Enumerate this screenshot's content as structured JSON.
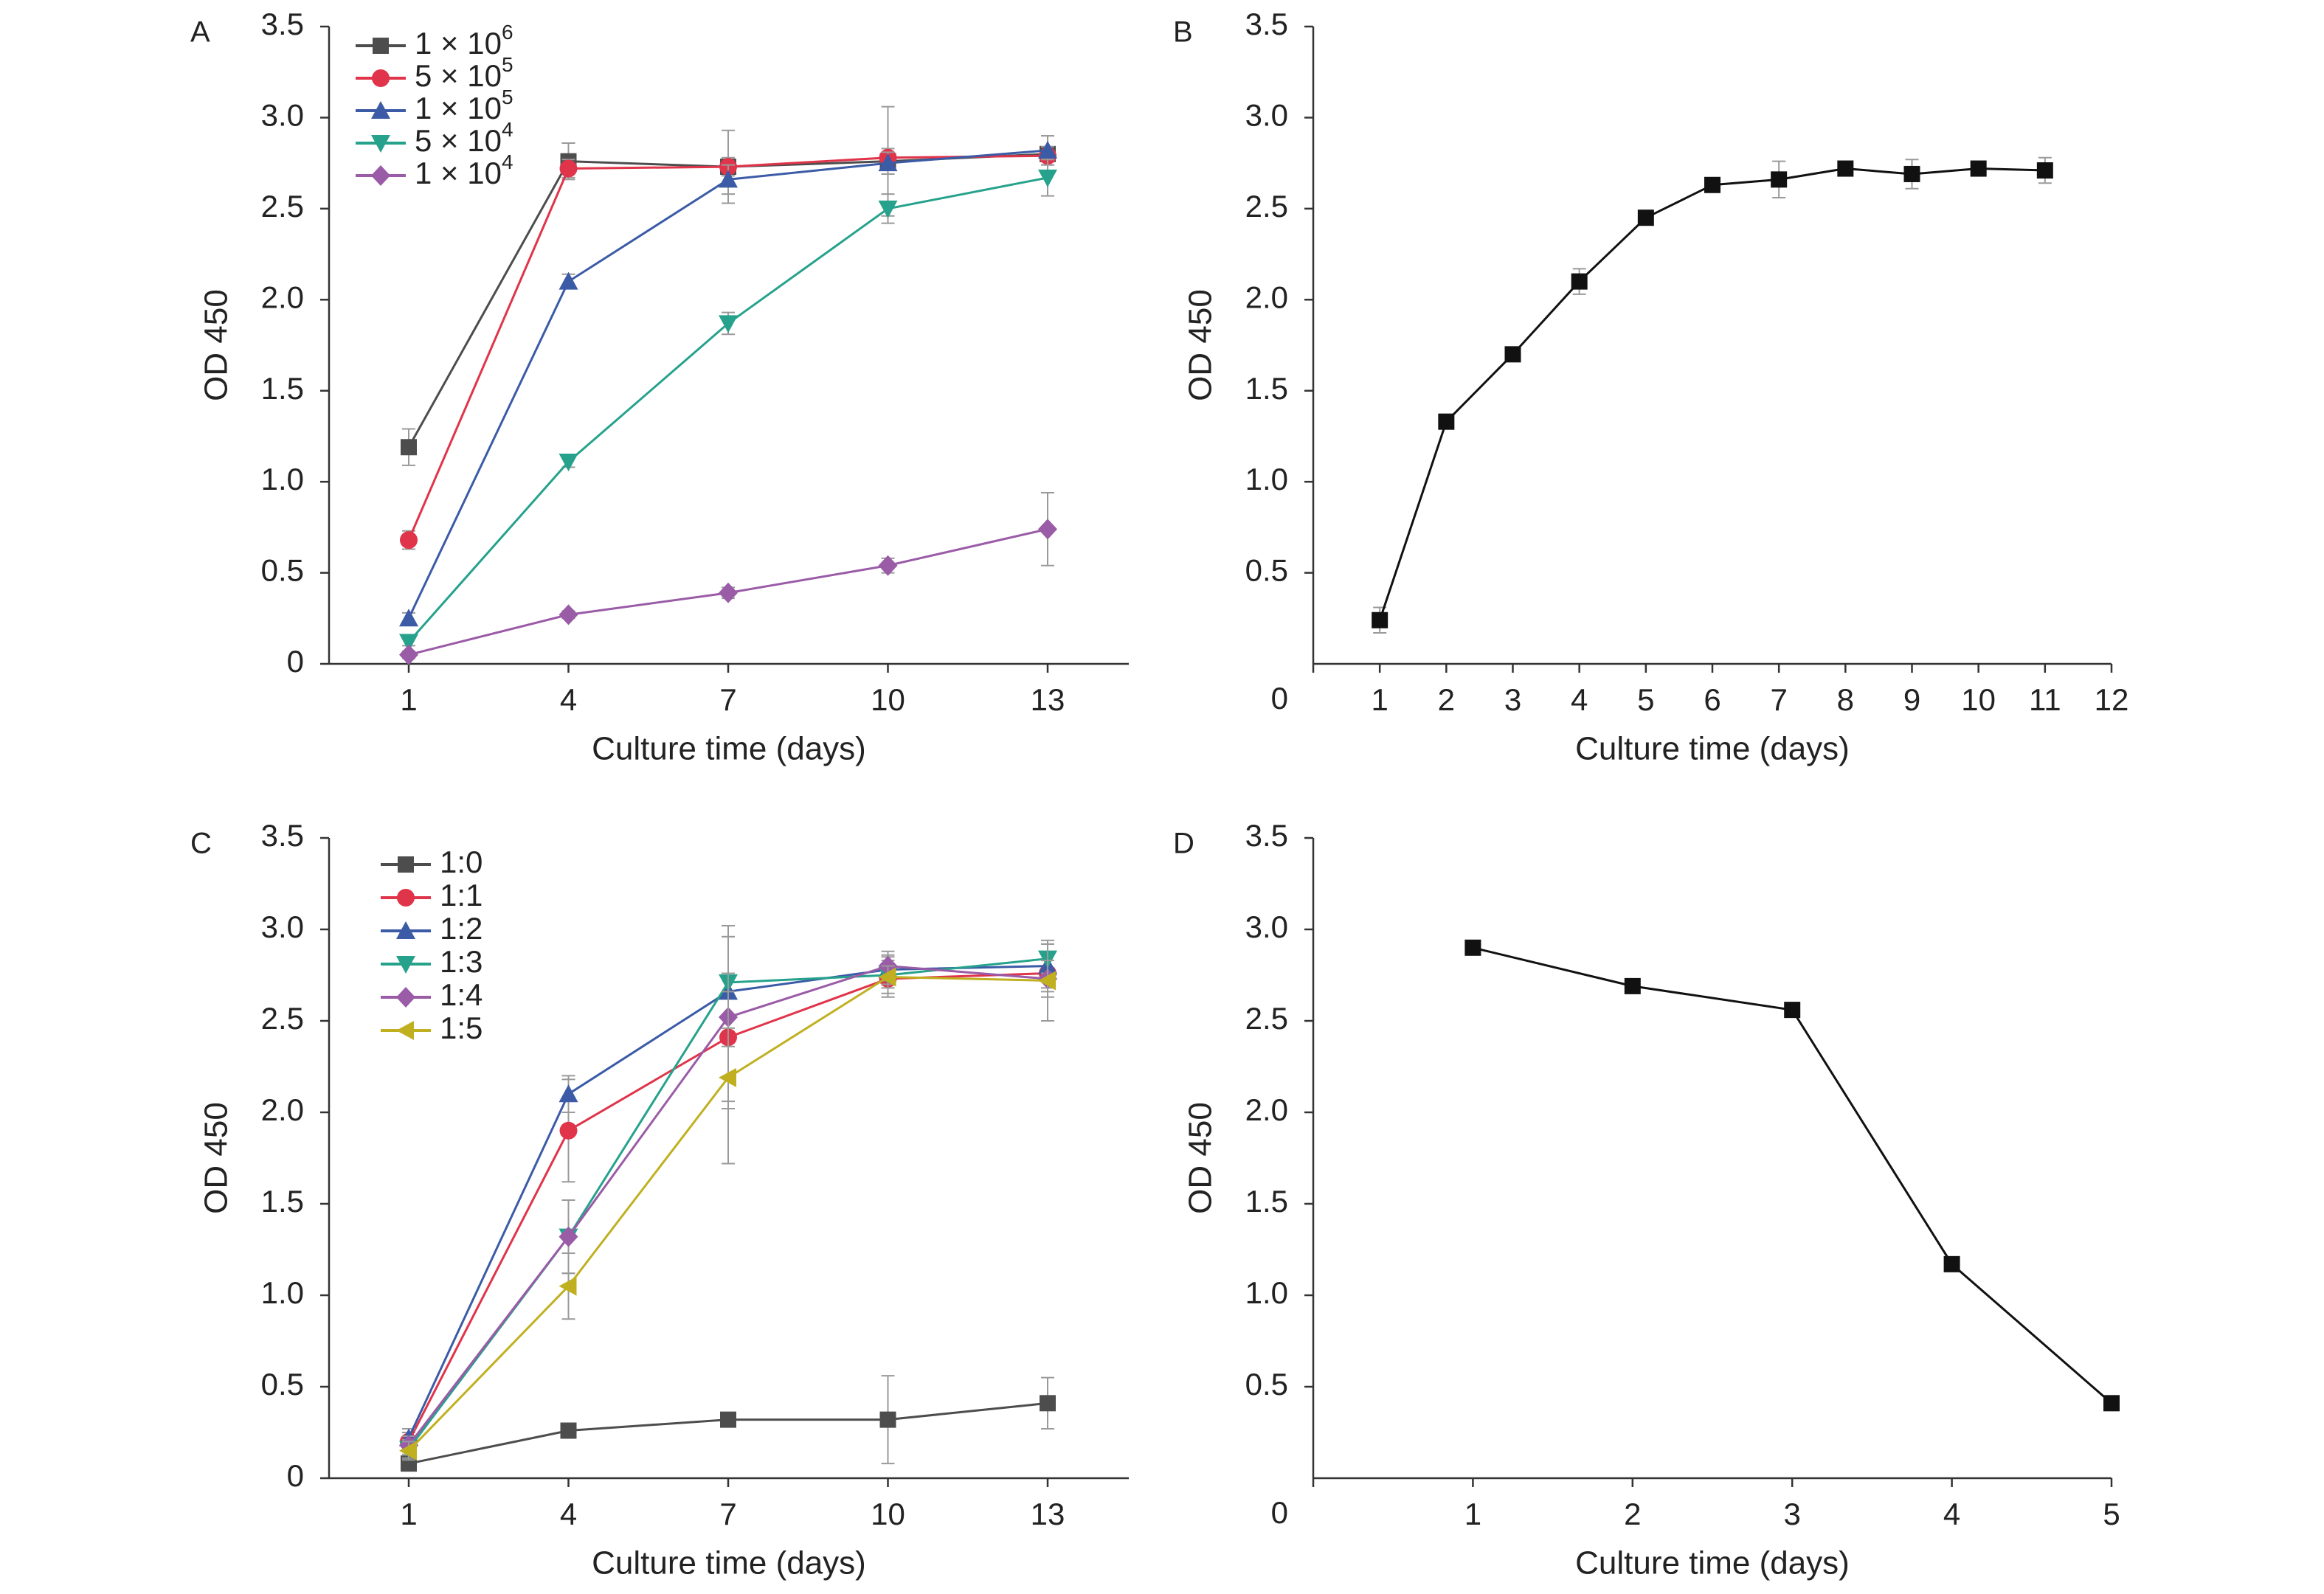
{
  "chart_data": [
    {
      "panel": "A",
      "type": "line",
      "xlabel": "Culture time (days)",
      "ylabel": "OD 450",
      "x": [
        1,
        4,
        7,
        10,
        13
      ],
      "xticks": [
        1,
        4,
        7,
        10,
        13
      ],
      "ylim": [
        0,
        3.5
      ],
      "yticks": [
        "0",
        "0.5",
        "1.0",
        "1.5",
        "2.0",
        "2.5",
        "3.0",
        "3.5"
      ],
      "legend_position": "top-left",
      "series": [
        {
          "name": "1 × 10",
          "sup": "6",
          "color": "#4d4d4d",
          "marker": "square",
          "values": [
            1.19,
            2.76,
            2.73,
            2.76,
            2.8
          ],
          "errors": [
            0.1,
            0.1,
            0.2,
            0.3,
            0.1
          ]
        },
        {
          "name": "5 × 10",
          "sup": "5",
          "color": "#e0344a",
          "marker": "circle",
          "values": [
            0.68,
            2.72,
            2.73,
            2.78,
            2.79
          ],
          "errors": [
            0.05,
            0.05,
            0.05,
            0.05,
            0.05
          ]
        },
        {
          "name": "1 × 10",
          "sup": "5",
          "color": "#3b5ba7",
          "marker": "triangle-up",
          "values": [
            0.25,
            2.1,
            2.66,
            2.75,
            2.82
          ],
          "errors": [
            0.03,
            0.04,
            0.08,
            0.06,
            0.08
          ]
        },
        {
          "name": "5 × 10",
          "sup": "4",
          "color": "#26a28c",
          "marker": "triangle-down",
          "values": [
            0.12,
            1.11,
            1.87,
            2.5,
            2.67
          ],
          "errors": [
            0.02,
            0.03,
            0.06,
            0.08,
            0.1
          ]
        },
        {
          "name": "1 × 10",
          "sup": "4",
          "color": "#9a5ba7",
          "marker": "diamond",
          "values": [
            0.05,
            0.27,
            0.39,
            0.54,
            0.74
          ],
          "errors": [
            0.02,
            0.02,
            0.03,
            0.04,
            0.2
          ]
        }
      ]
    },
    {
      "panel": "B",
      "type": "line",
      "xlabel": "Culture time (days)",
      "ylabel": "OD 450",
      "x": [
        1,
        2,
        3,
        4,
        5,
        6,
        7,
        8,
        9,
        10,
        11
      ],
      "xticks": [
        1,
        2,
        3,
        4,
        5,
        6,
        7,
        8,
        9,
        10,
        11,
        12
      ],
      "xlim": [
        0,
        12
      ],
      "ylim": [
        0,
        3.5
      ],
      "yticks": [
        "0.5",
        "1.0",
        "1.5",
        "2.0",
        "2.5",
        "3.0",
        "3.5"
      ],
      "series": [
        {
          "color": "#111111",
          "marker": "square",
          "values": [
            0.24,
            1.33,
            1.7,
            2.1,
            2.45,
            2.63,
            2.66,
            2.72,
            2.69,
            2.72,
            2.71
          ],
          "errors": [
            0.07,
            0.04,
            0.02,
            0.07,
            0.02,
            0.02,
            0.1,
            0.02,
            0.08,
            0.02,
            0.07
          ]
        }
      ]
    },
    {
      "panel": "C",
      "type": "line",
      "xlabel": "Culture time (days)",
      "ylabel": "OD 450",
      "x": [
        1,
        4,
        7,
        10,
        13
      ],
      "xticks": [
        1,
        4,
        7,
        10,
        13
      ],
      "ylim": [
        0,
        3.5
      ],
      "yticks": [
        "0",
        "0.5",
        "1.0",
        "1.5",
        "2.0",
        "2.5",
        "3.0",
        "3.5"
      ],
      "legend_position": "top-left",
      "series": [
        {
          "name": "1:0",
          "color": "#4d4d4d",
          "marker": "square",
          "values": [
            0.08,
            0.26,
            0.32,
            0.32,
            0.41
          ],
          "errors": [
            0.03,
            0.03,
            0.03,
            0.24,
            0.14
          ]
        },
        {
          "name": "1:1",
          "color": "#e0344a",
          "marker": "circle",
          "values": [
            0.2,
            1.9,
            2.41,
            2.73,
            2.76
          ],
          "errors": [
            0.05,
            0.28,
            0.35,
            0.1,
            0.1
          ]
        },
        {
          "name": "1:2",
          "color": "#3b5ba7",
          "marker": "triangle-up",
          "values": [
            0.22,
            2.1,
            2.66,
            2.78,
            2.8
          ],
          "errors": [
            0.05,
            0.1,
            0.3,
            0.08,
            0.12
          ]
        },
        {
          "name": "1:3",
          "color": "#26a28c",
          "marker": "triangle-down",
          "values": [
            0.16,
            1.32,
            2.71,
            2.75,
            2.84
          ],
          "errors": [
            0.05,
            0.2,
            0.25,
            0.1,
            0.08
          ]
        },
        {
          "name": "1:4",
          "color": "#9a5ba7",
          "marker": "diamond",
          "values": [
            0.18,
            1.32,
            2.52,
            2.8,
            2.73
          ],
          "errors": [
            0.05,
            0.2,
            0.5,
            0.08,
            0.1
          ]
        },
        {
          "name": "1:5",
          "color": "#c0b020",
          "marker": "triangle-left",
          "values": [
            0.15,
            1.05,
            2.19,
            2.74,
            2.72
          ],
          "errors": [
            0.05,
            0.18,
            0.47,
            0.06,
            0.22
          ]
        }
      ]
    },
    {
      "panel": "D",
      "type": "line",
      "xlabel": "Culture time (days)",
      "ylabel": "OD 450",
      "x": [
        1,
        2,
        3,
        4,
        5
      ],
      "xticks": [
        1,
        2,
        3,
        4,
        5
      ],
      "xlim": [
        0,
        5
      ],
      "ylim": [
        0,
        3.5
      ],
      "yticks": [
        "0.5",
        "1.0",
        "1.5",
        "2.0",
        "2.5",
        "3.0",
        "3.5"
      ],
      "series": [
        {
          "color": "#111111",
          "marker": "square",
          "values": [
            2.9,
            2.69,
            2.56,
            1.17,
            0.41
          ],
          "errors": [
            0.02,
            0.02,
            0.02,
            0.02,
            0.02
          ]
        }
      ]
    }
  ]
}
